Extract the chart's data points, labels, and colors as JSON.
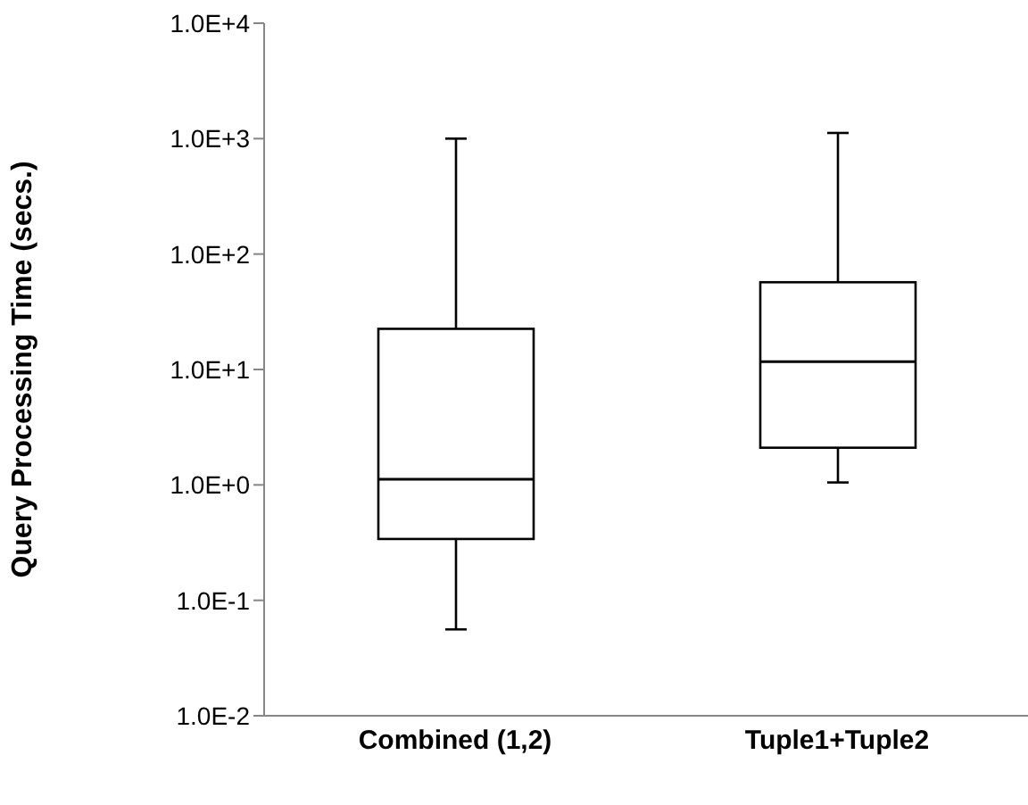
{
  "chart_data": {
    "type": "box",
    "ylabel": "Query Processing Time (secs.)",
    "categories": [
      "Combined (1,2)",
      "Tuple1+Tuple2"
    ],
    "boxes": [
      {
        "low": 0.056,
        "q1": 0.34,
        "median": 1.12,
        "q3": 22.5,
        "high": 1000
      },
      {
        "low": 1.05,
        "q1": 2.1,
        "median": 11.7,
        "q3": 57,
        "high": 1120
      }
    ],
    "color": "#000000",
    "log": true,
    "ylim": [
      0.01,
      10000
    ],
    "yticks": [
      {
        "value": 0.01,
        "label": "1.0E-2"
      },
      {
        "value": 0.1,
        "label": "1.0E-1"
      },
      {
        "value": 1,
        "label": "1.0E+0"
      },
      {
        "value": 10,
        "label": "1.0E+1"
      },
      {
        "value": 100,
        "label": "1.0E+2"
      },
      {
        "value": 1000,
        "label": "1.0E+3"
      },
      {
        "value": 10000,
        "label": "1.0E+4"
      }
    ],
    "grid": false,
    "legend": false
  }
}
